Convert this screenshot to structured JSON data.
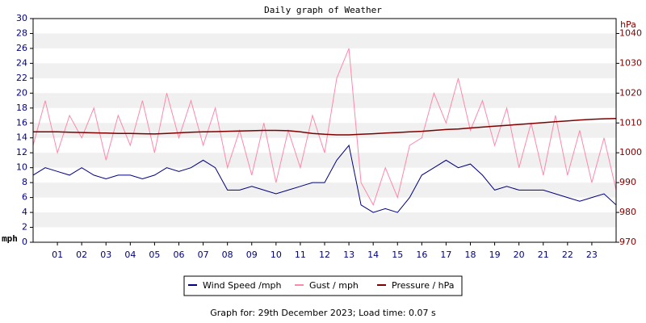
{
  "chart_data": {
    "type": "line",
    "title": "Daily graph of Weather",
    "y_label": "mph",
    "y2_label": "hPa",
    "footer": "Graph for: 29th December 2023; Load time: 0.07 s",
    "x": [
      0,
      0.5,
      1,
      1.5,
      2,
      2.5,
      3,
      3.5,
      4,
      4.5,
      5,
      5.5,
      6,
      6.5,
      7,
      7.5,
      8,
      8.5,
      9,
      9.5,
      10,
      10.5,
      11,
      11.5,
      12,
      12.5,
      13,
      13.5,
      14,
      14.5,
      15,
      15.5,
      16,
      16.5,
      17,
      17.5,
      18,
      18.5,
      19,
      19.5,
      20,
      20.5,
      21,
      21.5,
      22,
      22.5,
      23,
      23.5,
      24
    ],
    "xlim": [
      0,
      24
    ],
    "xticks": [
      {
        "value": 1,
        "label": "01"
      },
      {
        "value": 2,
        "label": "02"
      },
      {
        "value": 3,
        "label": "03"
      },
      {
        "value": 4,
        "label": "04"
      },
      {
        "value": 5,
        "label": "05"
      },
      {
        "value": 6,
        "label": "06"
      },
      {
        "value": 7,
        "label": "07"
      },
      {
        "value": 8,
        "label": "08"
      },
      {
        "value": 9,
        "label": "09"
      },
      {
        "value": 10,
        "label": "10"
      },
      {
        "value": 11,
        "label": "11"
      },
      {
        "value": 12,
        "label": "12"
      },
      {
        "value": 13,
        "label": "13"
      },
      {
        "value": 14,
        "label": "14"
      },
      {
        "value": 15,
        "label": "15"
      },
      {
        "value": 16,
        "label": "16"
      },
      {
        "value": 17,
        "label": "17"
      },
      {
        "value": 18,
        "label": "18"
      },
      {
        "value": 19,
        "label": "19"
      },
      {
        "value": 20,
        "label": "20"
      },
      {
        "value": 21,
        "label": "21"
      },
      {
        "value": 22,
        "label": "22"
      },
      {
        "value": 23,
        "label": "23"
      }
    ],
    "ylim": [
      0,
      30
    ],
    "yticks": [
      0,
      2,
      4,
      6,
      8,
      10,
      12,
      14,
      16,
      18,
      20,
      22,
      24,
      26,
      28,
      30
    ],
    "y2lim": [
      970,
      1045
    ],
    "y2ticks": [
      970,
      980,
      990,
      1000,
      1010,
      1020,
      1030,
      1040
    ],
    "grid": true,
    "series": [
      {
        "name": "Wind Speed /mph",
        "color": "#000080",
        "values": [
          9,
          10,
          9.5,
          9,
          10,
          9,
          8.5,
          9,
          9,
          8.5,
          9,
          10,
          9.5,
          10,
          11,
          10,
          7,
          7,
          7.5,
          7,
          6.5,
          7,
          7.5,
          8,
          8,
          11,
          13,
          5,
          4,
          4.5,
          4,
          6,
          9,
          10,
          11,
          10,
          10.5,
          9,
          7,
          7.5,
          7,
          7,
          7,
          6.5,
          6,
          5.5,
          6,
          6.5,
          5
        ]
      },
      {
        "name": "Gust / mph",
        "color": "#ff88aa",
        "values": [
          13,
          19,
          12,
          17,
          14,
          18,
          11,
          17,
          13,
          19,
          12,
          20,
          14,
          19,
          13,
          18,
          10,
          15,
          9,
          16,
          8,
          15,
          10,
          17,
          12,
          22,
          26,
          8,
          5,
          10,
          6,
          13,
          14,
          20,
          16,
          22,
          15,
          19,
          13,
          18,
          10,
          16,
          9,
          17,
          9,
          15,
          8,
          14,
          7
        ]
      },
      {
        "name": "Pressure / hPa",
        "color": "#800000",
        "axis": "y2",
        "values": [
          1007,
          1007,
          1007,
          1006.9,
          1006.8,
          1006.7,
          1006.6,
          1006.5,
          1006.5,
          1006.4,
          1006.3,
          1006.5,
          1006.7,
          1006.9,
          1007,
          1007.1,
          1007.2,
          1007.3,
          1007.4,
          1007.5,
          1007.5,
          1007.4,
          1007,
          1006.5,
          1006.2,
          1006,
          1006,
          1006.2,
          1006.4,
          1006.6,
          1006.8,
          1007,
          1007.2,
          1007.5,
          1007.8,
          1008,
          1008.3,
          1008.6,
          1008.9,
          1009.2,
          1009.5,
          1009.8,
          1010.1,
          1010.4,
          1010.7,
          1011,
          1011.2,
          1011.4,
          1011.5
        ]
      }
    ]
  }
}
